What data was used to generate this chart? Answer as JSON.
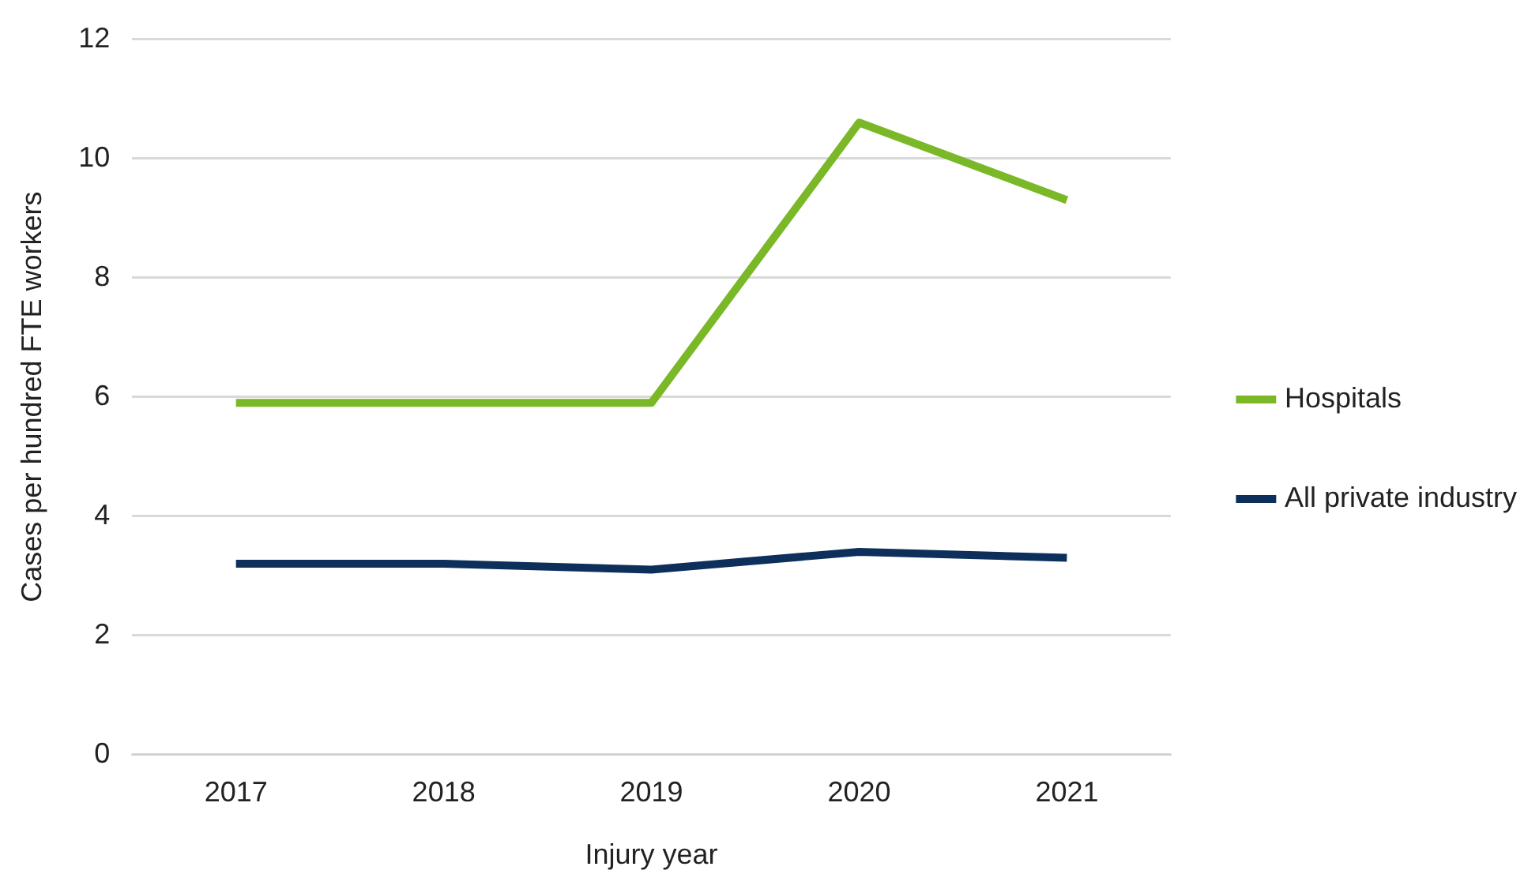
{
  "chart_data": {
    "type": "line",
    "xlabel": "Injury year",
    "ylabel": "Cases per hundred FTE workers",
    "categories": [
      "2017",
      "2018",
      "2019",
      "2020",
      "2021"
    ],
    "series": [
      {
        "name": "Hospitals",
        "color": "#7ab828",
        "values": [
          5.9,
          5.9,
          5.9,
          10.6,
          9.3
        ]
      },
      {
        "name": "All private industry",
        "color": "#0c2f5c",
        "values": [
          3.2,
          3.2,
          3.1,
          3.4,
          3.3
        ]
      }
    ],
    "ylim": [
      0,
      12
    ],
    "yticks": [
      0,
      2,
      4,
      6,
      8,
      10,
      12
    ],
    "grid": "y",
    "legend": "right",
    "marker": "none",
    "line_style": "solid"
  }
}
